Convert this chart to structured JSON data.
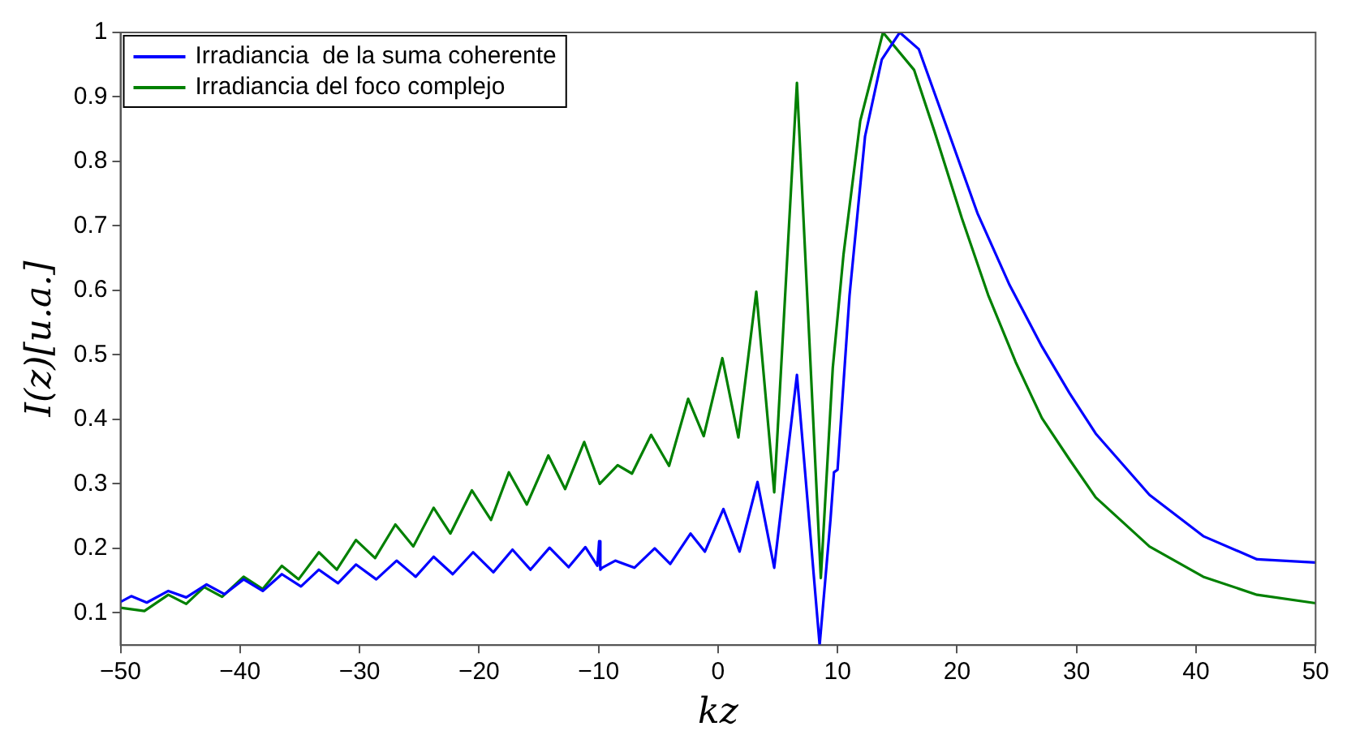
{
  "chart_data": {
    "type": "line",
    "xlabel": "kz",
    "ylabel": "I(z)[u.a.]",
    "xlim": [
      -50,
      50
    ],
    "ylim": [
      0.05,
      1
    ],
    "xticks": [
      {
        "value": -50,
        "label": "−50"
      },
      {
        "value": -40,
        "label": "−40"
      },
      {
        "value": -30,
        "label": "−30"
      },
      {
        "value": -20,
        "label": "−20"
      },
      {
        "value": -10,
        "label": "−10"
      },
      0,
      10,
      20,
      30,
      40,
      50
    ],
    "yticks": [
      0.1,
      0.2,
      0.3,
      0.4,
      0.5,
      0.6,
      0.7,
      0.8,
      0.9,
      1
    ],
    "grid": false,
    "legend": "top left",
    "marker": "none",
    "line_style": "solid",
    "series": [
      {
        "name": "Irradiancia  de la suma coherente",
        "color": "#0000ff",
        "x": [
          -50,
          -49.1,
          -47.8,
          -46,
          -44.5,
          -42.8,
          -41.3,
          -39.7,
          -38.1,
          -36.5,
          -34.9,
          -33.4,
          -31.8,
          -30.3,
          -28.6,
          -26.9,
          -25.3,
          -23.8,
          -22.2,
          -20.5,
          -18.8,
          -17.2,
          -15.7,
          -14.1,
          -12.5,
          -11.1,
          -10.1,
          -9.95,
          -9.85,
          -9.7,
          -8.6,
          -7,
          -5.3,
          -4,
          -2.3,
          -1.1,
          0.45,
          1.8,
          3.3,
          4.7,
          6.6,
          8.5,
          9.4,
          9.7,
          10,
          11,
          12.3,
          13.7,
          15.2,
          16.8,
          19.1,
          21.7,
          24.4,
          27.1,
          29.4,
          31.6,
          36.1,
          40.6,
          45.1,
          50
        ],
        "values": [
          0.117,
          0.126,
          0.116,
          0.134,
          0.124,
          0.144,
          0.129,
          0.152,
          0.134,
          0.16,
          0.141,
          0.167,
          0.146,
          0.175,
          0.152,
          0.181,
          0.156,
          0.187,
          0.16,
          0.194,
          0.163,
          0.198,
          0.167,
          0.201,
          0.171,
          0.202,
          0.173,
          0.211,
          0.167,
          0.17,
          0.181,
          0.17,
          0.2,
          0.176,
          0.223,
          0.195,
          0.261,
          0.195,
          0.303,
          0.17,
          0.469,
          0.05,
          0.243,
          0.318,
          0.322,
          0.592,
          0.839,
          0.958,
          1.0,
          0.974,
          0.855,
          0.72,
          0.608,
          0.513,
          0.441,
          0.378,
          0.283,
          0.219,
          0.183,
          0.178
        ]
      },
      {
        "name": "Irradiancia del foco complejo",
        "color": "#008000",
        "x": [
          -50,
          -48,
          -46,
          -44.5,
          -43,
          -41.5,
          -39.7,
          -38.1,
          -36.5,
          -35.1,
          -33.4,
          -31.9,
          -30.3,
          -28.7,
          -27,
          -25.5,
          -23.8,
          -22.4,
          -20.6,
          -19,
          -17.5,
          -16,
          -14.2,
          -12.8,
          -11.2,
          -9.9,
          -8.4,
          -7.2,
          -5.6,
          -4.1,
          -2.5,
          -1.2,
          0.36,
          1.7,
          3.2,
          4.7,
          6.6,
          8.6,
          9.6,
          10.5,
          11.9,
          13.8,
          16.4,
          18.1,
          20.4,
          22.6,
          24.9,
          27.1,
          29.4,
          31.6,
          36.1,
          40.6,
          45.1,
          50
        ],
        "values": [
          0.108,
          0.103,
          0.128,
          0.114,
          0.14,
          0.125,
          0.156,
          0.137,
          0.173,
          0.152,
          0.194,
          0.167,
          0.213,
          0.185,
          0.237,
          0.203,
          0.263,
          0.223,
          0.29,
          0.244,
          0.318,
          0.268,
          0.344,
          0.292,
          0.365,
          0.3,
          0.329,
          0.316,
          0.376,
          0.328,
          0.432,
          0.374,
          0.495,
          0.372,
          0.598,
          0.287,
          0.922,
          0.154,
          0.48,
          0.656,
          0.863,
          1.0,
          0.942,
          0.847,
          0.712,
          0.593,
          0.489,
          0.402,
          0.338,
          0.279,
          0.203,
          0.156,
          0.128,
          0.115
        ]
      }
    ]
  }
}
